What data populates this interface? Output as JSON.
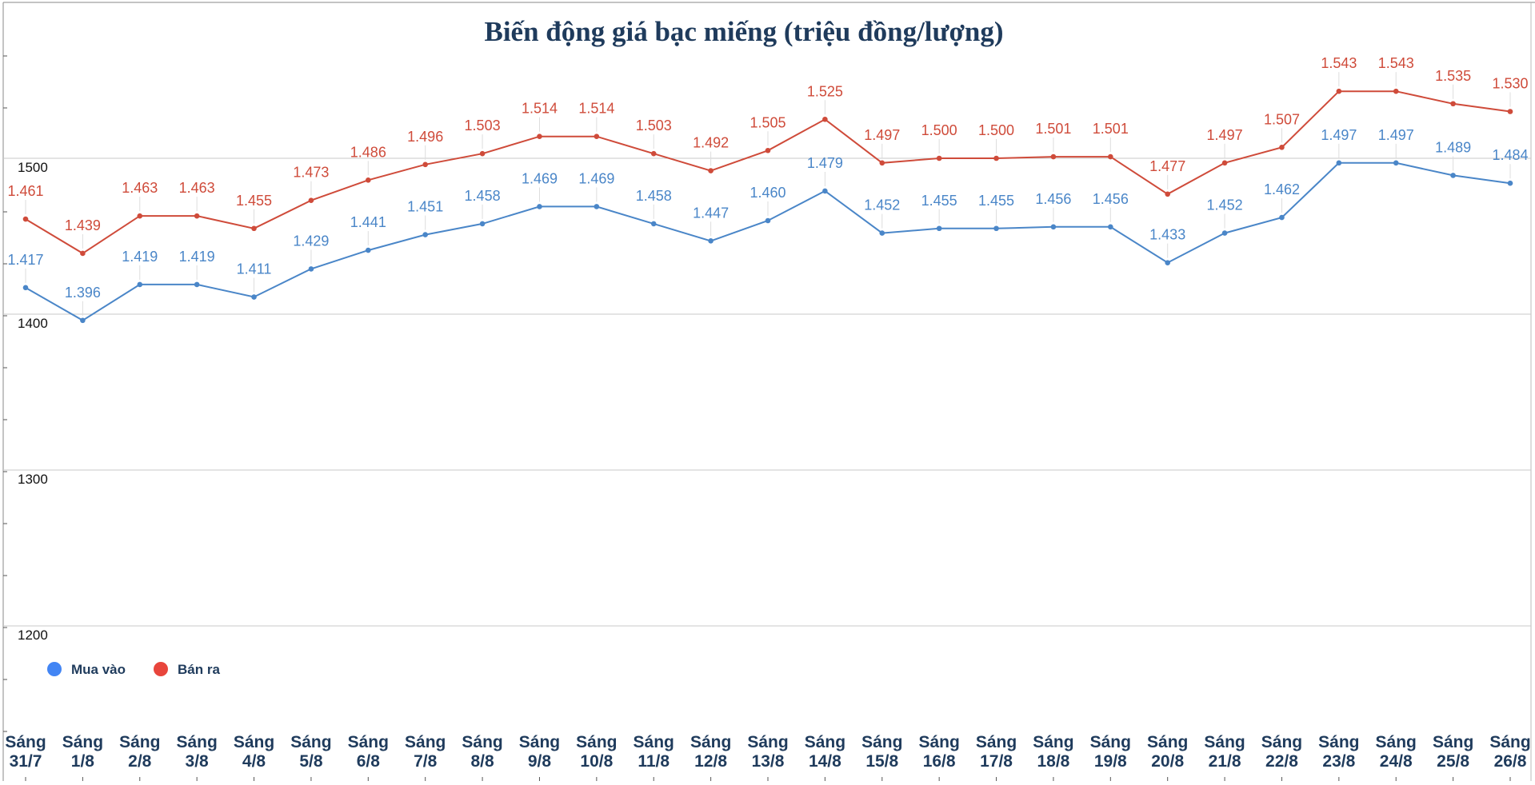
{
  "chart_data": {
    "type": "line",
    "title": "Biến động giá bạc miếng (triệu đồng/lượng)",
    "xlabel": "",
    "ylabel": "",
    "ylim": [
      1100,
      1590
    ],
    "y_ticks": [
      1200,
      1300,
      1400,
      1500
    ],
    "y_tick_labels": [
      "1200",
      "1300",
      "1400",
      "1500"
    ],
    "grid": true,
    "legend_position": "bottom-left",
    "categories": [
      [
        "Sáng",
        "31/7"
      ],
      [
        "Sáng",
        "1/8"
      ],
      [
        "Sáng",
        "2/8"
      ],
      [
        "Sáng",
        "3/8"
      ],
      [
        "Sáng",
        "4/8"
      ],
      [
        "Sáng",
        "5/8"
      ],
      [
        "Sáng",
        "6/8"
      ],
      [
        "Sáng",
        "7/8"
      ],
      [
        "Sáng",
        "8/8"
      ],
      [
        "Sáng",
        "9/8"
      ],
      [
        "Sáng",
        "10/8"
      ],
      [
        "Sáng",
        "11/8"
      ],
      [
        "Sáng",
        "12/8"
      ],
      [
        "Sáng",
        "13/8"
      ],
      [
        "Sáng",
        "14/8"
      ],
      [
        "Sáng",
        "15/8"
      ],
      [
        "Sáng",
        "16/8"
      ],
      [
        "Sáng",
        "17/8"
      ],
      [
        "Sáng",
        "18/8"
      ],
      [
        "Sáng",
        "19/8"
      ],
      [
        "Sáng",
        "20/8"
      ],
      [
        "Sáng",
        "21/8"
      ],
      [
        "Sáng",
        "22/8"
      ],
      [
        "Sáng",
        "23/8"
      ],
      [
        "Sáng",
        "24/8"
      ],
      [
        "Sáng",
        "25/8"
      ],
      [
        "Sáng",
        "26/8"
      ]
    ],
    "series": [
      {
        "name": "Mua vào",
        "color": "#4a86c8",
        "marker_color": "#4285f4",
        "values": [
          1417,
          1396,
          1419,
          1419,
          1411,
          1429,
          1441,
          1451,
          1458,
          1469,
          1469,
          1458,
          1447,
          1460,
          1479,
          1452,
          1455,
          1455,
          1456,
          1456,
          1433,
          1452,
          1462,
          1497,
          1497,
          1489,
          1484
        ],
        "labels": [
          "1.417",
          "1.396",
          "1.419",
          "1.419",
          "1.411",
          "1.429",
          "1.441",
          "1.451",
          "1.458",
          "1.469",
          "1.469",
          "1.458",
          "1.447",
          "1.460",
          "1.479",
          "1.452",
          "1.455",
          "1.455",
          "1.456",
          "1.456",
          "1.433",
          "1.452",
          "1.462",
          "1.497",
          "1.497",
          "1.489",
          "1.484"
        ]
      },
      {
        "name": "Bán ra",
        "color": "#cf4b3a",
        "marker_color": "#e8453c",
        "values": [
          1461,
          1439,
          1463,
          1463,
          1455,
          1473,
          1486,
          1496,
          1503,
          1514,
          1514,
          1503,
          1492,
          1505,
          1525,
          1497,
          1500,
          1500,
          1501,
          1501,
          1477,
          1497,
          1507,
          1543,
          1543,
          1535,
          1530
        ],
        "labels": [
          "1.461",
          "1.439",
          "1.463",
          "1.463",
          "1.455",
          "1.473",
          "1.486",
          "1.496",
          "1.503",
          "1.514",
          "1.514",
          "1.503",
          "1.492",
          "1.505",
          "1.525",
          "1.497",
          "1.500",
          "1.500",
          "1.501",
          "1.501",
          "1.477",
          "1.497",
          "1.507",
          "1.543",
          "1.543",
          "1.535",
          "1.530"
        ]
      }
    ]
  }
}
